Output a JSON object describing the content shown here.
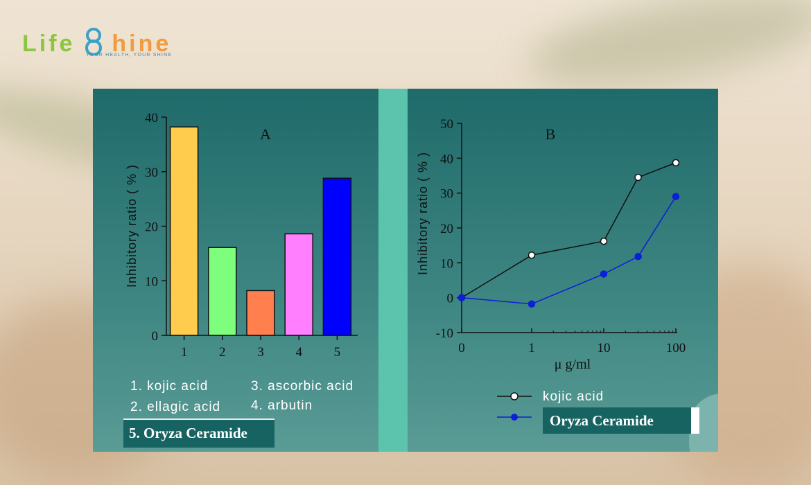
{
  "logo": {
    "part1": "Life",
    "part2": "hine",
    "tagline": "YOUR HEALTH, YOUR SHINE"
  },
  "colors": {
    "panel": "#2f7a77",
    "divider": "#5cc4ac",
    "kojic": "#000000",
    "oryza": "#0b1fd6"
  },
  "chart_data": [
    {
      "type": "bar",
      "title": "A",
      "ylabel": "Inhibitory ratio ( % )",
      "ylim": [
        0,
        40
      ],
      "yticks": [
        0,
        10,
        20,
        30,
        40
      ],
      "categories": [
        "1",
        "2",
        "3",
        "4",
        "5"
      ],
      "values": [
        38.2,
        16.1,
        8.2,
        18.6,
        28.8
      ],
      "bar_colors": [
        "#ffcc4d",
        "#7dff7d",
        "#ff7f4f",
        "#ff7fff",
        "#0000ff"
      ],
      "legend": [
        "1. kojic acid",
        "2. ellagic acid",
        "3. ascorbic acid",
        "4. arbutin",
        "5. Oryza Ceramide"
      ]
    },
    {
      "type": "line",
      "title": "B",
      "ylabel": "Inhibitory ratio ( % )",
      "xlabel": "μ g/ml",
      "ylim": [
        -10,
        50
      ],
      "yticks": [
        -10,
        0,
        10,
        20,
        30,
        40,
        50
      ],
      "xticks": [
        "0",
        "1",
        "10",
        "100"
      ],
      "series": [
        {
          "name": "kojic acid",
          "x": [
            0,
            1,
            10,
            30,
            100
          ],
          "y": [
            0,
            12.2,
            16.2,
            34.5,
            38.7
          ]
        },
        {
          "name": "Oryza Ceramide",
          "x": [
            0,
            1,
            10,
            30,
            100
          ],
          "y": [
            0,
            -1.8,
            6.8,
            11.8,
            29
          ]
        }
      ]
    }
  ]
}
